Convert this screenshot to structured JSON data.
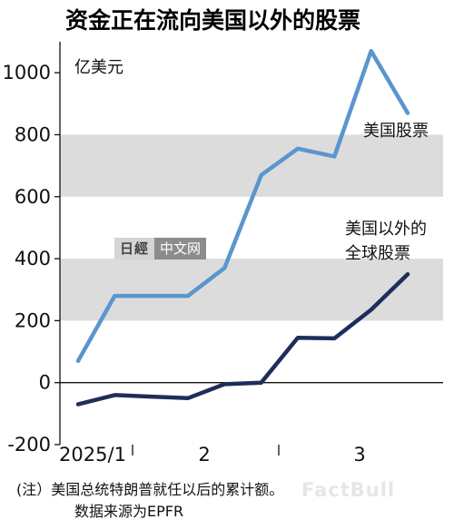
{
  "chart_data": {
    "type": "line",
    "title": "资金正在流向美国以外的股票",
    "ylabel": "亿美元",
    "ylim": [
      -200,
      1100
    ],
    "yticks": [
      -200,
      0,
      200,
      400,
      600,
      800,
      1000
    ],
    "x_tick_labels": [
      "2025/1",
      "2",
      "3"
    ],
    "series": [
      {
        "name": "美国股票",
        "color": "#5b95cf",
        "values": [
          70,
          280,
          280,
          280,
          370,
          670,
          755,
          730,
          1070,
          870
        ]
      },
      {
        "name": "美国以外的全球股票",
        "color": "#1f2d5a",
        "values": [
          -70,
          -40,
          -45,
          -50,
          -5,
          0,
          145,
          143,
          235,
          350
        ]
      }
    ],
    "label_us": "美国股票",
    "label_nonus_line1": "美国以外的",
    "label_nonus_line2": "全球股票"
  },
  "notes": {
    "line1": "(注）美国总统特朗普就任以后的累计额。",
    "line2": "数据来源为EPFR"
  },
  "watermark": {
    "part1": "日經",
    "part2": "中文网",
    "bottom": "FactBull"
  }
}
